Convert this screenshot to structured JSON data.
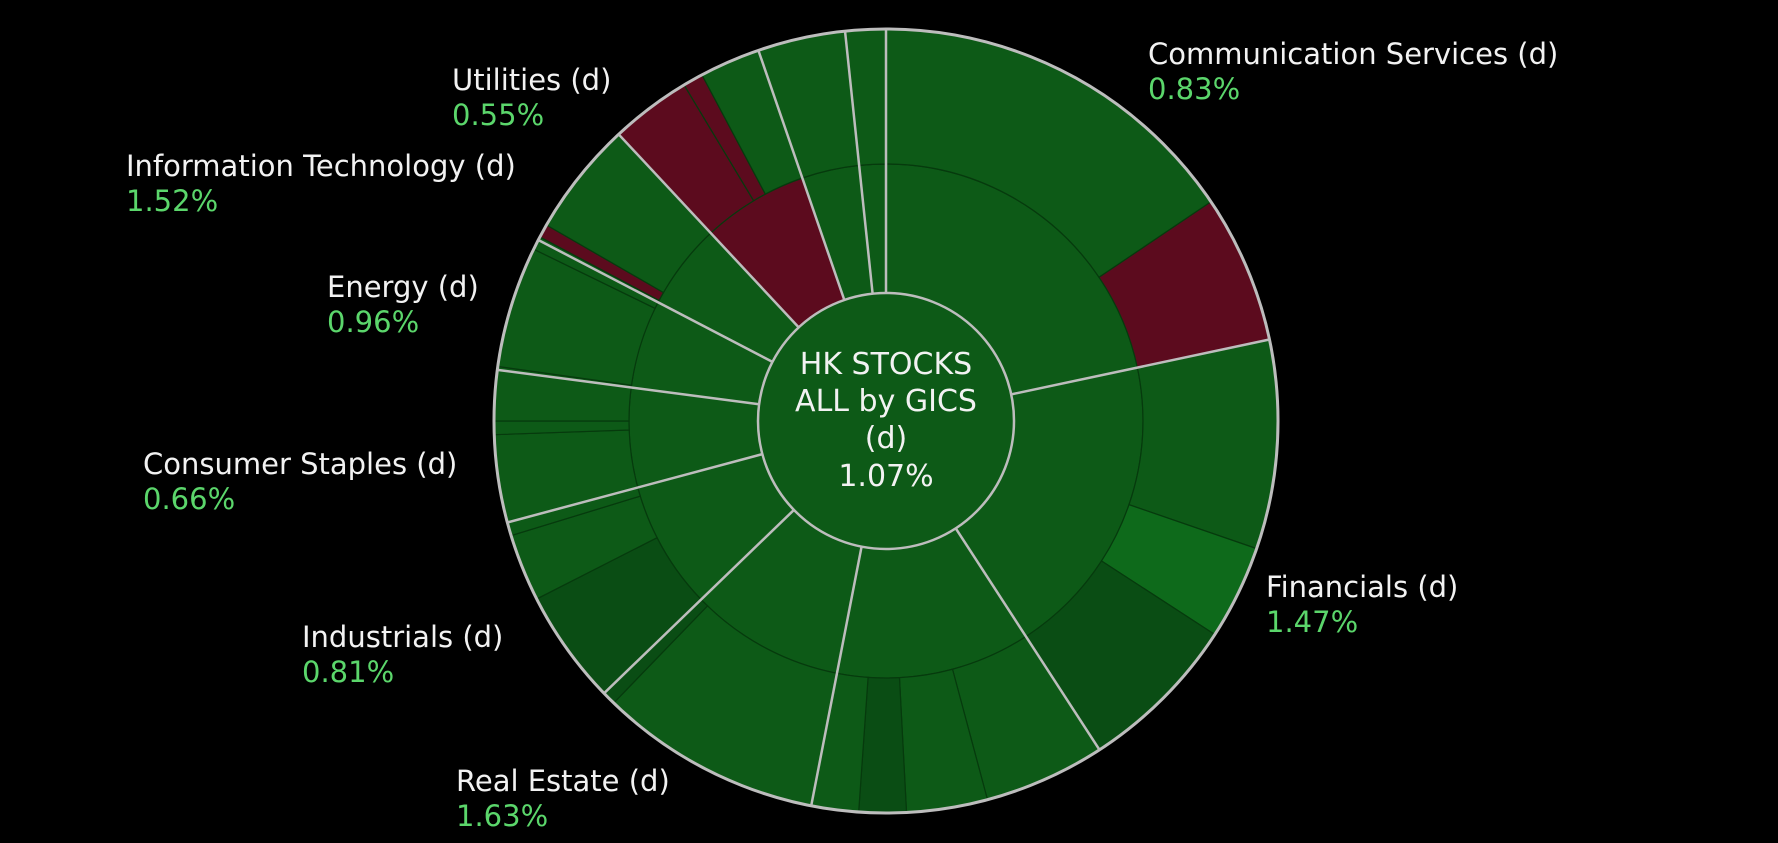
{
  "chart_data": {
    "type": "sunburst",
    "center": {
      "line1": "HK STOCKS",
      "line2": "ALL by GICS",
      "line3": "(d)",
      "value": "1.07%"
    },
    "colors": {
      "background": "#000000",
      "positive_dark": "#0a4d14",
      "positive": "#0d5a17",
      "positive_bright": "#0e6a1b",
      "negative": "#5c0b1e",
      "separator": "#bdbdbd",
      "label_name": "#f2f2f2",
      "label_value": "#5bd66b"
    },
    "sectors": [
      {
        "name": "Communication Services (d)",
        "value": "0.83%"
      },
      {
        "name": "Financials (d)",
        "value": "1.47%"
      },
      {
        "name": "Real Estate (d)",
        "value": "1.63%"
      },
      {
        "name": "Industrials (d)",
        "value": "0.81%"
      },
      {
        "name": "Consumer Staples (d)",
        "value": "0.66%"
      },
      {
        "name": "Energy (d)",
        "value": "0.96%"
      },
      {
        "name": "Information Technology (d)",
        "value": "1.52%"
      },
      {
        "name": "Utilities (d)",
        "value": "0.55%"
      }
    ],
    "inner_ring": [
      {
        "angle_start": 0,
        "angle_end": 78,
        "tone": "positive"
      },
      {
        "angle_start": 78,
        "angle_end": 147,
        "tone": "positive"
      },
      {
        "angle_start": 147,
        "angle_end": 191,
        "tone": "positive"
      },
      {
        "angle_start": 191,
        "angle_end": 226,
        "tone": "positive"
      },
      {
        "angle_start": 226,
        "angle_end": 255,
        "tone": "positive"
      },
      {
        "angle_start": 255,
        "angle_end": 277.5,
        "tone": "positive"
      },
      {
        "angle_start": 277.5,
        "angle_end": 297.5,
        "tone": "positive"
      },
      {
        "angle_start": 297.5,
        "angle_end": 317,
        "tone": "positive"
      },
      {
        "angle_start": 317,
        "angle_end": 341,
        "tone": "negative"
      },
      {
        "angle_start": 341,
        "angle_end": 354,
        "tone": "positive"
      },
      {
        "angle_start": 354,
        "angle_end": 360,
        "tone": "positive"
      }
    ],
    "outer_ring": [
      {
        "angle_start": 0,
        "angle_end": 56,
        "tone": "positive"
      },
      {
        "angle_start": 56,
        "angle_end": 78,
        "tone": "negative"
      },
      {
        "angle_start": 78,
        "angle_end": 109,
        "tone": "positive"
      },
      {
        "angle_start": 109,
        "angle_end": 123,
        "tone": "positive_bright"
      },
      {
        "angle_start": 123,
        "angle_end": 147,
        "tone": "positive_dark"
      },
      {
        "angle_start": 147,
        "angle_end": 165,
        "tone": "positive"
      },
      {
        "angle_start": 165,
        "angle_end": 177,
        "tone": "positive"
      },
      {
        "angle_start": 177,
        "angle_end": 184,
        "tone": "positive_dark"
      },
      {
        "angle_start": 184,
        "angle_end": 191,
        "tone": "positive"
      },
      {
        "angle_start": 191,
        "angle_end": 224,
        "tone": "positive"
      },
      {
        "angle_start": 224,
        "angle_end": 226,
        "tone": "positive_dark"
      },
      {
        "angle_start": 226,
        "angle_end": 243,
        "tone": "positive_dark"
      },
      {
        "angle_start": 243,
        "angle_end": 253,
        "tone": "positive"
      },
      {
        "angle_start": 253,
        "angle_end": 255,
        "tone": "positive"
      },
      {
        "angle_start": 255,
        "angle_end": 268,
        "tone": "positive"
      },
      {
        "angle_start": 268,
        "angle_end": 270,
        "tone": "positive"
      },
      {
        "angle_start": 270,
        "angle_end": 278,
        "tone": "positive"
      },
      {
        "angle_start": 278,
        "angle_end": 296,
        "tone": "positive"
      },
      {
        "angle_start": 296,
        "angle_end": 298,
        "tone": "positive"
      },
      {
        "angle_start": 298,
        "angle_end": 300,
        "tone": "negative"
      },
      {
        "angle_start": 300,
        "angle_end": 317,
        "tone": "positive"
      },
      {
        "angle_start": 317,
        "angle_end": 329,
        "tone": "negative"
      },
      {
        "angle_start": 329,
        "angle_end": 332,
        "tone": "negative"
      },
      {
        "angle_start": 332,
        "angle_end": 341,
        "tone": "positive"
      },
      {
        "angle_start": 341,
        "angle_end": 354,
        "tone": "positive"
      },
      {
        "angle_start": 354,
        "angle_end": 360,
        "tone": "positive"
      }
    ]
  }
}
